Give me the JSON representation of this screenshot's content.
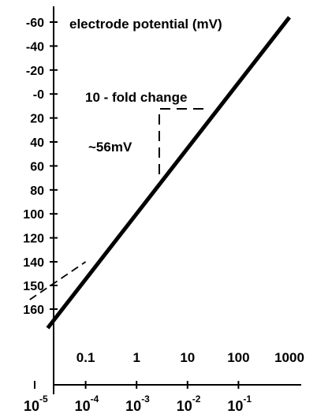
{
  "chart_data": {
    "type": "line",
    "title": "electrode potential (mV)",
    "y_axis": {
      "direction": "inverted",
      "ticks": [
        "-60",
        "-40",
        "-20",
        "-0",
        "20",
        "40",
        "60",
        "80",
        "100",
        "120",
        "140",
        "150",
        "160"
      ],
      "ylim": [
        -60,
        160
      ]
    },
    "x_axis": {
      "scale": "log",
      "upper_ticks": [
        "0.1",
        "1",
        "10",
        "100",
        "1000"
      ],
      "lower_ticks": [
        {
          "base": "10",
          "exp": "-1"
        },
        {
          "base": "10",
          "exp": "-2"
        },
        {
          "base": "10",
          "exp": "-3"
        },
        {
          "base": "10",
          "exp": "-4"
        },
        {
          "base": "10",
          "exp": "-5"
        }
      ]
    },
    "series": [
      {
        "line_style": "solid",
        "points": [
          {
            "x": 0.018,
            "y": 168
          },
          {
            "x": 1000,
            "y": -64
          }
        ]
      },
      {
        "line_style": "dashed",
        "points": [
          {
            "x": 0.008,
            "y": 156
          },
          {
            "x": 0.1,
            "y": 140
          }
        ]
      }
    ],
    "annotations": [
      {
        "text": "10 - fold change"
      },
      {
        "text": "~56mV"
      }
    ],
    "colors": {
      "line": "#000000",
      "background": "#ffffff"
    }
  }
}
